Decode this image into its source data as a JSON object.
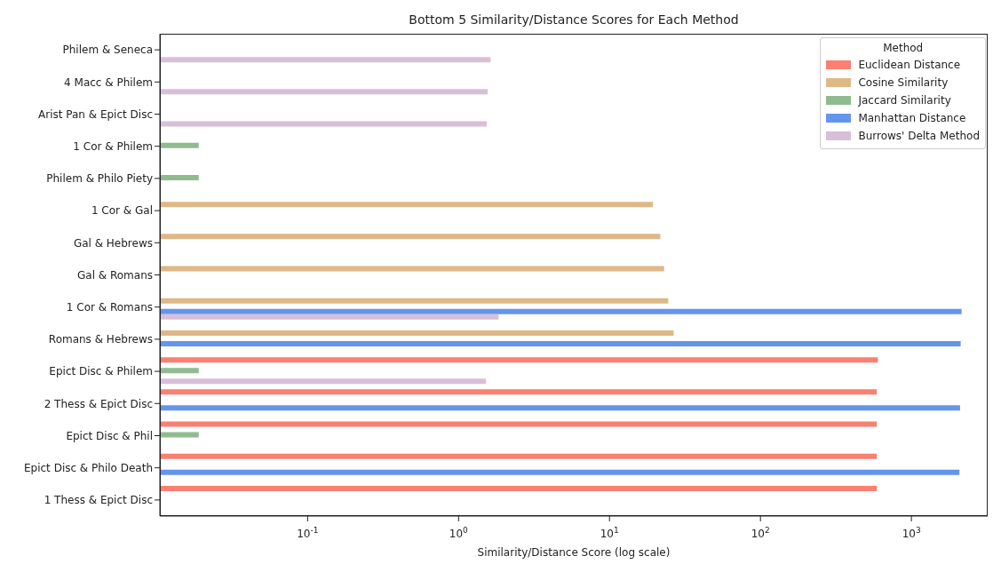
{
  "chart_data": {
    "type": "bar",
    "orientation": "horizontal",
    "title": "Bottom 5 Similarity/Distance Scores for Each Method",
    "xlabel": "Similarity/Distance Score (log scale)",
    "legend_title": "Method",
    "legend": "top right",
    "log": "x",
    "categories": [
      "Philem & Seneca",
      "4 Macc & Philem",
      "Arist Pan & Epict Disc",
      "1 Cor & Philem",
      "Philem & Philo Piety",
      "1 Cor & Gal",
      "Gal & Hebrews",
      "Gal & Romans",
      "1 Cor & Romans",
      "Romans & Hebrews",
      "Epict Disc & Philem",
      "2 Thess & Epict Disc",
      "Epict Disc & Phil",
      "Epict Disc & Philo Death",
      "1 Thess & Epict Disc"
    ],
    "series": [
      {
        "name": "Euclidean Distance",
        "color": "#fa8072",
        "values": [
          null,
          null,
          null,
          null,
          null,
          null,
          null,
          null,
          null,
          null,
          600,
          590,
          590,
          590,
          590
        ]
      },
      {
        "name": "Cosine Similarity",
        "color": "#deb887",
        "values": [
          null,
          null,
          null,
          null,
          null,
          19.4,
          21.7,
          23,
          24.5,
          26.6,
          null,
          null,
          null,
          null,
          null
        ]
      },
      {
        "name": "Jaccard Similarity",
        "color": "#8fbc8f",
        "values": [
          null,
          null,
          null,
          0.019,
          0.019,
          null,
          null,
          null,
          null,
          null,
          0.019,
          null,
          0.019,
          null,
          null
        ]
      },
      {
        "name": "Manhattan Distance",
        "color": "#6495ed",
        "values": [
          null,
          null,
          null,
          null,
          null,
          null,
          null,
          null,
          2150,
          2120,
          null,
          2100,
          null,
          2080,
          null
        ]
      },
      {
        "name": "Burrows' Delta Method",
        "color": "#d8bfd8",
        "values": [
          1.63,
          1.56,
          1.54,
          null,
          null,
          null,
          null,
          null,
          1.84,
          null,
          1.52,
          null,
          null,
          null,
          null
        ]
      }
    ],
    "xlim": [
      0.0105,
      3200
    ],
    "xticks": [
      {
        "value": 0.1,
        "label": "10$^{-1}$"
      },
      {
        "value": 1,
        "label": "10$^{0}$"
      },
      {
        "value": 10,
        "label": "10$^{1}$"
      },
      {
        "value": 100,
        "label": "10$^{2}$"
      },
      {
        "value": 1000,
        "label": "10$^{3}$"
      }
    ]
  }
}
